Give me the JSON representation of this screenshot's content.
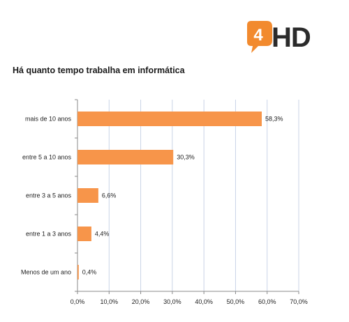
{
  "logo": {
    "number": "4",
    "text": "HD",
    "badge_color": "#f28a2e",
    "text_color": "#2b2b2b"
  },
  "chart_data": {
    "type": "bar",
    "orientation": "horizontal",
    "title": "Há quanto tempo trabalha em informática",
    "categories": [
      "mais de 10 anos",
      "entre 5 a 10 anos",
      "entre 3 a 5 anos",
      "entre 1 a 3 anos",
      "Menos de um ano"
    ],
    "values": [
      58.3,
      30.3,
      6.6,
      4.4,
      0.4
    ],
    "value_labels": [
      "58,3%",
      "30,3%",
      "6,6%",
      "4,4%",
      "0,4%"
    ],
    "xlim": [
      0,
      70
    ],
    "xticks": [
      0,
      10,
      20,
      30,
      40,
      50,
      60,
      70
    ],
    "xtick_labels": [
      "0,0%",
      "10,0%",
      "20,0%",
      "30,0%",
      "40,0%",
      "50,0%",
      "60,0%",
      "70,0%"
    ],
    "grid": true,
    "bar_color": "#f7954a",
    "grid_color": "#c9d3e6"
  }
}
